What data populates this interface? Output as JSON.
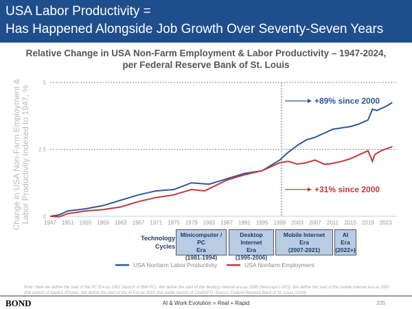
{
  "header": {
    "line1": "USA Labor Productivity =",
    "line2": "Has Happened Alongside Job Growth Over Seventy-Seven Years"
  },
  "chart_data": {
    "type": "line",
    "title": "Relative Change in USA Non-Farm Employment & Labor Productivity – 1947-2024, per Federal Reserve Bank of St. Louis",
    "title_line1": "Relative Change in USA Non-Farm Employment & Labor Productivity – 1947-2024,",
    "title_line2": "per Federal Reserve Bank of St. Louis",
    "ylabel_line1": "Change in USA Non-Farm Employment &",
    "ylabel_line2": "Labor Productivity Indexed to 1947, %",
    "ylim": [
      0,
      5
    ],
    "yticks": [
      "0",
      "2.5",
      "5"
    ],
    "xticks": [
      "1947",
      "1951",
      "1955",
      "1959",
      "1963",
      "1967",
      "1971",
      "1975",
      "1979",
      "1983",
      "1987",
      "1991",
      "1995",
      "1999",
      "2003",
      "2007",
      "2011",
      "2015",
      "2019",
      "2023"
    ],
    "series": [
      {
        "name": "USA Nonfarm Labor Productivity",
        "color": "#2e5597",
        "x": [
          1947,
          1949,
          1951,
          1955,
          1959,
          1963,
          1967,
          1971,
          1975,
          1979,
          1983,
          1987,
          1991,
          1995,
          1999,
          2001,
          2003,
          2005,
          2007,
          2009,
          2011,
          2013,
          2015,
          2017,
          2019,
          2020,
          2021,
          2023,
          2024.5
        ],
        "y": [
          0,
          0.05,
          0.2,
          0.28,
          0.4,
          0.6,
          0.8,
          0.95,
          1.0,
          1.25,
          1.2,
          1.4,
          1.6,
          1.7,
          2.1,
          2.4,
          2.65,
          2.85,
          2.95,
          3.1,
          3.25,
          3.3,
          3.35,
          3.45,
          3.6,
          4.0,
          3.95,
          4.1,
          4.25
        ]
      },
      {
        "name": "USA Nonfarm Employment",
        "color": "#c0393b",
        "x": [
          1947,
          1949,
          1951,
          1955,
          1959,
          1963,
          1967,
          1971,
          1975,
          1979,
          1982,
          1987,
          1991,
          1995,
          1999,
          2001,
          2003,
          2005,
          2007,
          2009,
          2010,
          2013,
          2015,
          2017,
          2019,
          2020,
          2020.5,
          2022,
          2024.5
        ],
        "y": [
          0,
          -0.02,
          0.1,
          0.2,
          0.25,
          0.35,
          0.55,
          0.7,
          0.8,
          1.0,
          0.95,
          1.35,
          1.55,
          1.7,
          2.0,
          2.05,
          1.95,
          2.0,
          2.1,
          1.95,
          1.95,
          2.05,
          2.15,
          2.3,
          2.45,
          2.05,
          2.3,
          2.45,
          2.6
        ]
      }
    ],
    "annotations": [
      "+89% since 2000",
      "+31% since 2000"
    ],
    "legend": [
      "USA Nonfarm Labor Productivity",
      "USA Nonfarm Employment"
    ]
  },
  "cycles": {
    "label_line1": "Technology",
    "label_line2": "Cycles",
    "eras": [
      {
        "l1": "Minicomputer / PC",
        "l2": "Era",
        "l3": "(1981-1994)"
      },
      {
        "l1": "Desktop Internet",
        "l2": "Era",
        "l3": "(1995-2006)"
      },
      {
        "l1": "Mobile Internet",
        "l2": "Era",
        "l3": "(2007-2021)"
      },
      {
        "l1": "AI",
        "l2": "Era",
        "l3": "(2022+)"
      }
    ]
  },
  "note": "Note: Here we define the start of the PC Era as 1981 (launch of IBM PC). We define the start of the desktop internet era as 1995 (Netscape's IPO). We define the start of the mobile internet era as 2007 (the launch of Apple's iPhone). We define the start of the AI Era as 2022 (the public launch of ChatGPT). Source: Federal Reserve Bank of St. Louis (2024)",
  "footer": {
    "logo": "BOND",
    "center": "AI & Work Evolution = Real + Rapid",
    "page": "335"
  }
}
